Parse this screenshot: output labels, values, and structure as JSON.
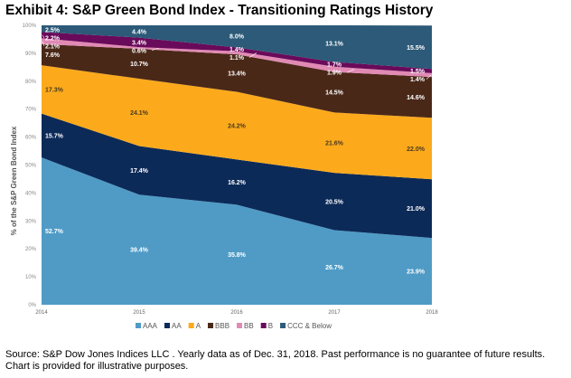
{
  "title": "Exhibit 4: S&P Green Bond Index - Transitioning Ratings History",
  "footer": "Source: S&P Dow Jones Indices LLC . Yearly data as of Dec. 31, 2018. Past performance is no guarantee of future results. Chart is provided for illustrative purposes.",
  "chart_data": {
    "type": "area",
    "stacked": true,
    "categories": [
      "2014",
      "2015",
      "2016",
      "2017",
      "2018"
    ],
    "ylabel": "% of the S&P Green Bond Index",
    "ylim": [
      0,
      100
    ],
    "yticks": [
      "0%",
      "10%",
      "20%",
      "30%",
      "40%",
      "50%",
      "60%",
      "70%",
      "80%",
      "90%",
      "100%"
    ],
    "legend_position": "bottom",
    "series": [
      {
        "name": "AAA",
        "color": "#4f9bc6",
        "label_color": "#ffffff",
        "values": [
          52.7,
          39.4,
          35.8,
          26.7,
          23.9
        ],
        "labels": [
          "52.7%",
          "39.4%",
          "35.8%",
          "26.7%",
          "23.9%"
        ]
      },
      {
        "name": "AA",
        "color": "#0c2a58",
        "label_color": "#ffffff",
        "values": [
          15.7,
          17.4,
          16.2,
          20.5,
          21.0
        ],
        "labels": [
          "15.7%",
          "17.4%",
          "16.2%",
          "20.5%",
          "21.0%"
        ]
      },
      {
        "name": "A",
        "color": "#fcaa1c",
        "label_color": "#4a3a20",
        "values": [
          17.3,
          24.1,
          24.2,
          21.6,
          22.0
        ],
        "labels": [
          "17.3%",
          "24.1%",
          "24.2%",
          "21.6%",
          "22.0%"
        ]
      },
      {
        "name": "BBB",
        "color": "#4a2818",
        "label_color": "#ffffff",
        "values": [
          7.6,
          10.7,
          13.4,
          14.5,
          14.6
        ],
        "labels": [
          "7.6%",
          "10.7%",
          "13.4%",
          "14.5%",
          "14.6%"
        ]
      },
      {
        "name": "BB",
        "color": "#e08ab4",
        "label_color": "#ffffff",
        "values": [
          2.1,
          0.6,
          1.1,
          1.9,
          1.4
        ],
        "labels": [
          "2.1%",
          "0.6%",
          "1.1%",
          "1.9%",
          "1.4%"
        ]
      },
      {
        "name": "B",
        "color": "#6a0a5a",
        "label_color": "#ffffff",
        "values": [
          2.2,
          3.4,
          1.4,
          1.7,
          1.5
        ],
        "labels": [
          "2.2%",
          "3.4%",
          "1.4%",
          "1.7%",
          "1.5%"
        ]
      },
      {
        "name": "CCC & Below",
        "color": "#2c5a78",
        "label_color": "#ffffff",
        "values": [
          2.5,
          4.4,
          8.0,
          13.1,
          15.5
        ],
        "labels": [
          "2.5%",
          "4.4%",
          "8.0%",
          "13.1%",
          "15.5%"
        ]
      }
    ]
  }
}
